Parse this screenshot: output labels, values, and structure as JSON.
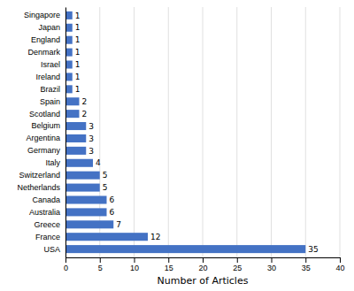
{
  "chart_data": {
    "type": "bar",
    "orientation": "horizontal",
    "categories": [
      "Singapore",
      "Japan",
      "England",
      "Denmark",
      "Israel",
      "Ireland",
      "Brazil",
      "Spain",
      "Scotland",
      "Belgium",
      "Argentina",
      "Germany",
      "Italy",
      "Switzerland",
      "Netherlands",
      "Canada",
      "Australia",
      "Greece",
      "France",
      "USA"
    ],
    "values": [
      1,
      1,
      1,
      1,
      1,
      1,
      1,
      2,
      2,
      3,
      3,
      3,
      4,
      5,
      5,
      6,
      6,
      7,
      12,
      35
    ],
    "color": "#4472c4",
    "xlabel": "Number of Articles",
    "xlim": [
      0,
      40
    ],
    "xticks": [
      0,
      5,
      10,
      15,
      20,
      25,
      30,
      35,
      40
    ],
    "grid": true,
    "data_labels": true
  }
}
